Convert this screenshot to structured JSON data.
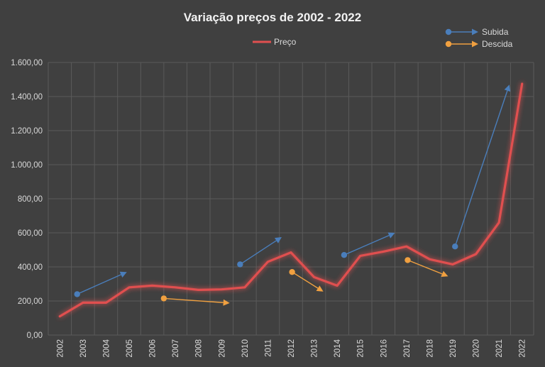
{
  "chart_data": {
    "type": "line",
    "title": "Variação  preços de 2002 - 2022",
    "xlabel": "",
    "ylabel": "",
    "categories": [
      "2002",
      "2003",
      "2004",
      "2005",
      "2006",
      "2007",
      "2008",
      "2009",
      "2010",
      "2011",
      "2012",
      "2013",
      "2014",
      "2015",
      "2016",
      "2017",
      "2018",
      "2019",
      "2020",
      "2021",
      "2022"
    ],
    "series": [
      {
        "name": "Preço",
        "color": "#e05050",
        "values": [
          110,
          190,
          190,
          280,
          290,
          280,
          265,
          268,
          280,
          430,
          485,
          340,
          290,
          465,
          490,
          520,
          445,
          415,
          475,
          660,
          1475
        ]
      }
    ],
    "ylim": [
      0,
      1600
    ],
    "yticks": [
      "0,00",
      "200,00",
      "400,00",
      "600,00",
      "800,00",
      "1.000,00",
      "1.200,00",
      "1.400,00",
      "1.600,00"
    ],
    "grid": true,
    "legend": {
      "position": "top",
      "entries": [
        "Preço"
      ]
    },
    "annotations": {
      "legend": [
        {
          "label": "Subida",
          "color": "#4a7ebb"
        },
        {
          "label": "Descida",
          "color": "#f0a040"
        }
      ],
      "arrows": [
        {
          "kind": "up",
          "color": "#4a7ebb",
          "from": [
            2002.75,
            240
          ],
          "to": [
            2004.9,
            370
          ]
        },
        {
          "kind": "down",
          "color": "#f0a040",
          "from": [
            2006.5,
            215
          ],
          "to": [
            2009.35,
            188
          ]
        },
        {
          "kind": "up",
          "color": "#4a7ebb",
          "from": [
            2009.8,
            415
          ],
          "to": [
            2011.6,
            575
          ]
        },
        {
          "kind": "down",
          "color": "#f0a040",
          "from": [
            2012.05,
            370
          ],
          "to": [
            2013.4,
            255
          ]
        },
        {
          "kind": "up",
          "color": "#4a7ebb",
          "from": [
            2014.3,
            470
          ],
          "to": [
            2016.5,
            600
          ]
        },
        {
          "kind": "down",
          "color": "#f0a040",
          "from": [
            2017.05,
            440
          ],
          "to": [
            2018.8,
            345
          ]
        },
        {
          "kind": "up",
          "color": "#4a7ebb",
          "from": [
            2019.1,
            520
          ],
          "to": [
            2021.45,
            1470
          ]
        }
      ]
    }
  }
}
